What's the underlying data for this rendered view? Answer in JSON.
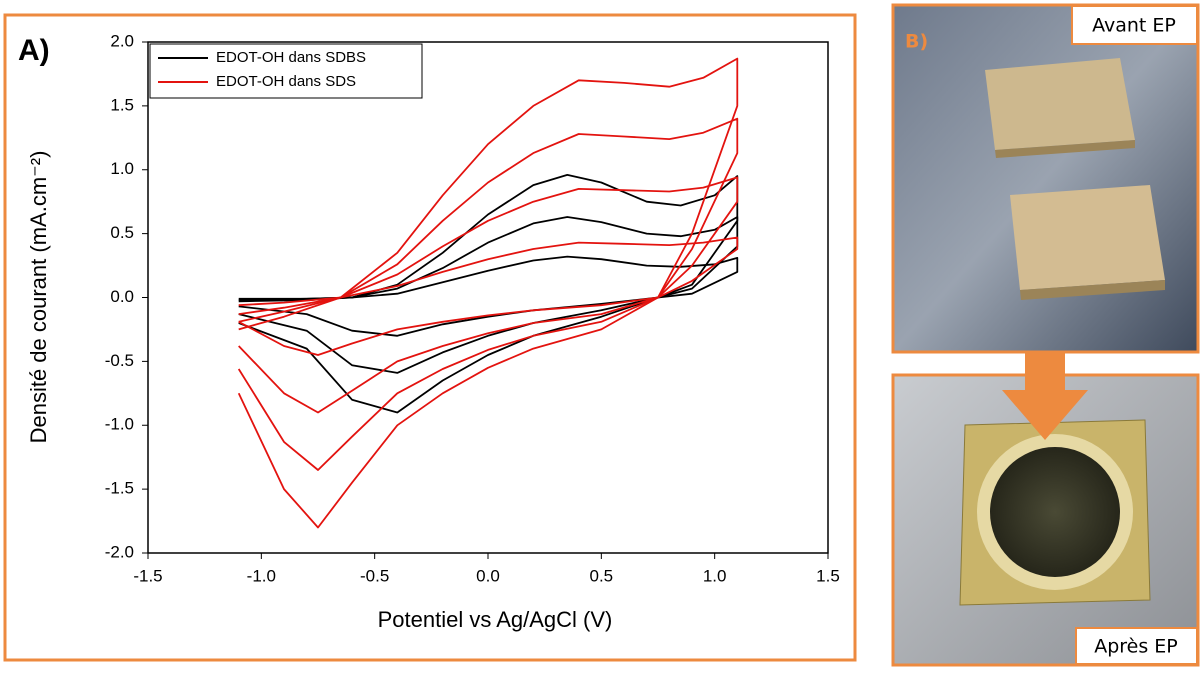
{
  "chart_data": {
    "type": "line",
    "panel_label": "A)",
    "xlabel": "Potentiel vs Ag/AgCl (V)",
    "ylabel": "Densité de courant (mA.cm⁻²)",
    "xlim": [
      -1.5,
      1.5
    ],
    "xticks": [
      -1.5,
      {
        "value": -1,
        "label": "-1.0"
      },
      -0.5,
      {
        "value": 0,
        "label": "0.0"
      },
      0.5,
      {
        "value": 1,
        "label": "1.0"
      },
      1.5
    ],
    "ylim": [
      -2,
      2
    ],
    "yticks": [
      {
        "value": -2,
        "label": "-2.0"
      },
      -1.5,
      {
        "value": -1,
        "label": "-1.0"
      },
      -0.5,
      {
        "value": 0,
        "label": "0.0"
      },
      0.5,
      {
        "value": 1,
        "label": "1.0"
      },
      1.5,
      {
        "value": 2,
        "label": "2.0"
      }
    ],
    "legend": "upper left",
    "series": [
      {
        "name": "EDOT-OH dans SDBS",
        "color": "#000000",
        "cycles": [
          {
            "x": [
              -1.1,
              -0.8,
              -0.6,
              -0.4,
              -0.2,
              0,
              0.2,
              0.35,
              0.5,
              0.7,
              0.85,
              1.0,
              1.1,
              1.1,
              0.9,
              0.75,
              0.5,
              0.2,
              0,
              -0.2,
              -0.4,
              -0.6,
              -0.8,
              -1.1
            ],
            "values": [
              -0.03,
              -0.02,
              0,
              0.1,
              0.35,
              0.65,
              0.88,
              0.96,
              0.9,
              0.75,
              0.72,
              0.8,
              0.95,
              0.6,
              0.1,
              0,
              -0.15,
              -0.3,
              -0.45,
              -0.65,
              -0.9,
              -0.8,
              -0.4,
              -0.2
            ]
          },
          {
            "x": [
              -1.1,
              -0.8,
              -0.6,
              -0.4,
              -0.2,
              0,
              0.2,
              0.35,
              0.5,
              0.7,
              0.85,
              1.0,
              1.1,
              1.1,
              0.9,
              0.75,
              0.5,
              0.2,
              0,
              -0.2,
              -0.4,
              -0.6,
              -0.8,
              -1.1
            ],
            "values": [
              -0.02,
              -0.01,
              0,
              0.07,
              0.23,
              0.43,
              0.58,
              0.63,
              0.59,
              0.5,
              0.48,
              0.53,
              0.63,
              0.4,
              0.07,
              0,
              -0.1,
              -0.2,
              -0.3,
              -0.43,
              -0.59,
              -0.53,
              -0.26,
              -0.13
            ]
          },
          {
            "x": [
              -1.1,
              -0.8,
              -0.6,
              -0.4,
              -0.2,
              0,
              0.2,
              0.35,
              0.5,
              0.7,
              0.85,
              1.0,
              1.1,
              1.1,
              0.9,
              0.75,
              0.5,
              0.2,
              0,
              -0.2,
              -0.4,
              -0.6,
              -0.8,
              -1.1
            ],
            "values": [
              -0.01,
              -0.01,
              0,
              0.03,
              0.12,
              0.21,
              0.29,
              0.32,
              0.3,
              0.25,
              0.24,
              0.26,
              0.31,
              0.2,
              0.03,
              0,
              -0.05,
              -0.1,
              -0.15,
              -0.21,
              -0.3,
              -0.26,
              -0.13,
              -0.07
            ]
          }
        ]
      },
      {
        "name": "EDOT-OH dans SDS",
        "color": "#e3130f",
        "cycles": [
          {
            "x": [
              -1.1,
              -0.9,
              -0.65,
              -0.4,
              -0.2,
              0,
              0.2,
              0.4,
              0.6,
              0.8,
              0.95,
              1.1,
              1.1,
              0.9,
              0.75,
              0.5,
              0.2,
              0,
              -0.2,
              -0.4,
              -0.6,
              -0.75,
              -0.9,
              -1.1
            ],
            "values": [
              -0.25,
              -0.15,
              0,
              0.35,
              0.8,
              1.2,
              1.5,
              1.7,
              1.68,
              1.65,
              1.72,
              1.87,
              1.5,
              0.5,
              0,
              -0.25,
              -0.4,
              -0.55,
              -0.75,
              -1.0,
              -1.45,
              -1.8,
              -1.5,
              -0.75
            ]
          },
          {
            "x": [
              -1.1,
              -0.9,
              -0.65,
              -0.4,
              -0.2,
              0,
              0.2,
              0.4,
              0.6,
              0.8,
              0.95,
              1.1,
              1.1,
              0.9,
              0.75,
              0.5,
              0.2,
              0,
              -0.2,
              -0.4,
              -0.6,
              -0.75,
              -0.9,
              -1.1
            ],
            "values": [
              -0.19,
              -0.11,
              0,
              0.26,
              0.6,
              0.9,
              1.13,
              1.28,
              1.26,
              1.24,
              1.29,
              1.4,
              1.13,
              0.38,
              0,
              -0.19,
              -0.3,
              -0.41,
              -0.56,
              -0.75,
              -1.09,
              -1.35,
              -1.13,
              -0.56
            ]
          },
          {
            "x": [
              -1.1,
              -0.9,
              -0.65,
              -0.4,
              -0.2,
              0,
              0.2,
              0.4,
              0.6,
              0.8,
              0.95,
              1.1,
              1.1,
              0.9,
              0.75,
              0.5,
              0.2,
              0,
              -0.2,
              -0.4,
              -0.6,
              -0.75,
              -0.9,
              -1.1
            ],
            "values": [
              -0.13,
              -0.08,
              0,
              0.18,
              0.4,
              0.6,
              0.75,
              0.85,
              0.84,
              0.83,
              0.86,
              0.94,
              0.75,
              0.25,
              0,
              -0.13,
              -0.2,
              -0.28,
              -0.38,
              -0.5,
              -0.73,
              -0.9,
              -0.75,
              -0.38
            ]
          },
          {
            "x": [
              -1.1,
              -0.9,
              -0.65,
              -0.4,
              -0.2,
              0,
              0.2,
              0.4,
              0.6,
              0.8,
              0.95,
              1.1,
              1.1,
              0.9,
              0.75,
              0.5,
              0.2,
              0,
              -0.2,
              -0.4,
              -0.6,
              -0.75,
              -0.9,
              -1.1
            ],
            "values": [
              -0.06,
              -0.04,
              0,
              0.09,
              0.2,
              0.3,
              0.38,
              0.43,
              0.42,
              0.41,
              0.43,
              0.47,
              0.38,
              0.13,
              0,
              -0.06,
              -0.1,
              -0.14,
              -0.19,
              -0.25,
              -0.36,
              -0.45,
              -0.38,
              -0.19
            ]
          }
        ]
      }
    ]
  },
  "photos": {
    "panel_label": "B)",
    "top_caption": "Avant EP",
    "bottom_caption": "Après EP"
  }
}
